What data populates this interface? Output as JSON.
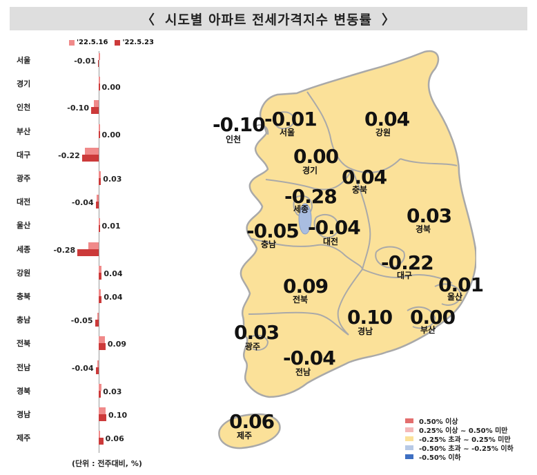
{
  "title": "시도별 아파트 전세가격지수 변동률",
  "title_brackets": [
    "〈",
    "〉"
  ],
  "unit_note": "(단위 : 전주대비, %)",
  "colors": {
    "series_prev": "#f08a8a",
    "series_curr": "#cc3a3a",
    "map_fill": "#fbe199",
    "map_stroke": "#a9a9a9",
    "lake": "#a9bde0",
    "legend_level1": "#e36e6e",
    "legend_level2": "#f4b8b8",
    "legend_level3": "#fbe199",
    "legend_level4": "#b7c9e6",
    "legend_level5": "#3e6fc2"
  },
  "chart_data": {
    "type": "bar",
    "orientation": "horizontal",
    "categories": [
      "서울",
      "경기",
      "인천",
      "부산",
      "대구",
      "광주",
      "대전",
      "울산",
      "세종",
      "강원",
      "충북",
      "충남",
      "전북",
      "전남",
      "경북",
      "경남",
      "제주"
    ],
    "series": [
      {
        "name": "'22.5.16",
        "values": [
          0.0,
          0.01,
          -0.06,
          0.0,
          -0.18,
          0.03,
          -0.03,
          0.01,
          -0.14,
          0.04,
          0.03,
          -0.02,
          0.08,
          -0.02,
          0.04,
          0.09,
          0.01
        ]
      },
      {
        "name": "'22.5.23",
        "values": [
          -0.01,
          0.0,
          -0.1,
          0.0,
          -0.22,
          0.03,
          -0.04,
          0.01,
          -0.28,
          0.04,
          0.04,
          -0.05,
          0.09,
          -0.04,
          0.03,
          0.1,
          0.06
        ]
      }
    ],
    "labels": [
      "-0.01",
      "0.00",
      "-0.10",
      "0.00",
      "-0.22",
      "0.03",
      "-0.04",
      "0.01",
      "-0.28",
      "0.04",
      "0.04",
      "-0.05",
      "0.09",
      "-0.04",
      "0.03",
      "0.10",
      "0.06"
    ]
  },
  "map_regions": [
    {
      "name": "인천",
      "value": "-0.10"
    },
    {
      "name": "서울",
      "value": "-0.01"
    },
    {
      "name": "강원",
      "value": "0.04"
    },
    {
      "name": "경기",
      "value": "0.00"
    },
    {
      "name": "충북",
      "value": "0.04"
    },
    {
      "name": "세종",
      "value": "-0.28"
    },
    {
      "name": "경북",
      "value": "0.03"
    },
    {
      "name": "충남",
      "value": "-0.05"
    },
    {
      "name": "대전",
      "value": "-0.04"
    },
    {
      "name": "대구",
      "value": "-0.22"
    },
    {
      "name": "울산",
      "value": "0.01"
    },
    {
      "name": "전북",
      "value": "0.09"
    },
    {
      "name": "경남",
      "value": "0.10"
    },
    {
      "name": "부산",
      "value": "0.00"
    },
    {
      "name": "광주",
      "value": "0.03"
    },
    {
      "name": "전남",
      "value": "-0.04"
    },
    {
      "name": "제주",
      "value": "0.06"
    }
  ],
  "map_legend": [
    {
      "label": "0.50% 이상"
    },
    {
      "label": "0.25% 이상 ~ 0.50% 미만"
    },
    {
      "label": "-0.25% 초과 ~ 0.25% 미만"
    },
    {
      "label": "-0.50% 초과 ~ -0.25% 이하"
    },
    {
      "label": "-0.50% 이하"
    }
  ]
}
